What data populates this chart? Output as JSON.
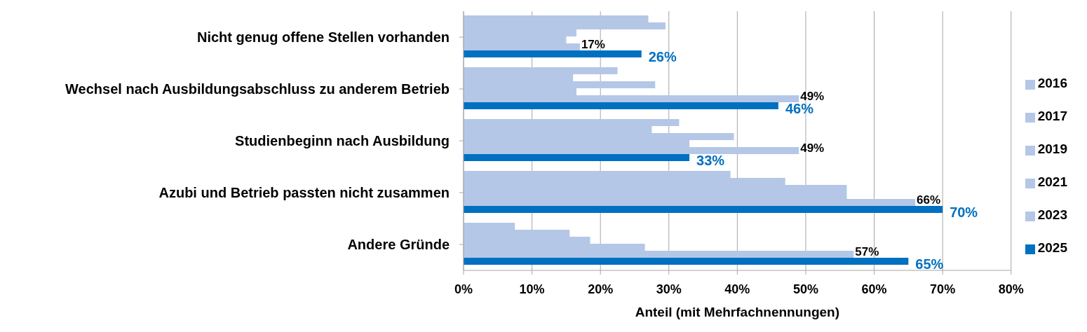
{
  "chart_data": {
    "type": "bar",
    "orientation": "horizontal",
    "xlabel": "Anteil (mit Mehrfachnennungen)",
    "categories": [
      "Nicht genug offene Stellen vorhanden",
      "Wechsel nach Ausbildungsabschluss zu anderem Betrieb",
      "Studienbeginn nach Ausbildung",
      "Azubi und Betrieb passten nicht zusammen",
      "Andere Gründe"
    ],
    "series": [
      {
        "name": "2016",
        "color": "#b4c7e7",
        "values": [
          27,
          22.5,
          31.5,
          39,
          7.5
        ]
      },
      {
        "name": "2017",
        "color": "#b4c7e7",
        "values": [
          29.5,
          16,
          27.5,
          47,
          15.5
        ]
      },
      {
        "name": "2019",
        "color": "#b4c7e7",
        "values": [
          16.5,
          28,
          39.5,
          56,
          18.5
        ]
      },
      {
        "name": "2021",
        "color": "#b4c7e7",
        "values": [
          15,
          16.5,
          33,
          56,
          26.5
        ]
      },
      {
        "name": "2023",
        "color": "#b4c7e7",
        "values": [
          17,
          49,
          49,
          66,
          57
        ],
        "value_labels": [
          "17%",
          "49%",
          "49%",
          "66%",
          "57%"
        ]
      },
      {
        "name": "2025",
        "color": "#0070c0",
        "values": [
          26,
          46,
          33,
          70,
          65
        ],
        "value_labels": [
          "26%",
          "46%",
          "33%",
          "70%",
          "65%"
        ]
      }
    ],
    "xlim": [
      0,
      80
    ],
    "xticks": [
      {
        "value": 0,
        "label": "0%"
      },
      {
        "value": 10,
        "label": "10%"
      },
      {
        "value": 20,
        "label": "20%"
      },
      {
        "value": 30,
        "label": "30%"
      },
      {
        "value": 40,
        "label": "40%"
      },
      {
        "value": 50,
        "label": "50%"
      },
      {
        "value": 60,
        "label": "60%"
      },
      {
        "value": 70,
        "label": "70%"
      },
      {
        "value": 80,
        "label": "80%"
      }
    ],
    "grid": "x",
    "legend": "right"
  }
}
